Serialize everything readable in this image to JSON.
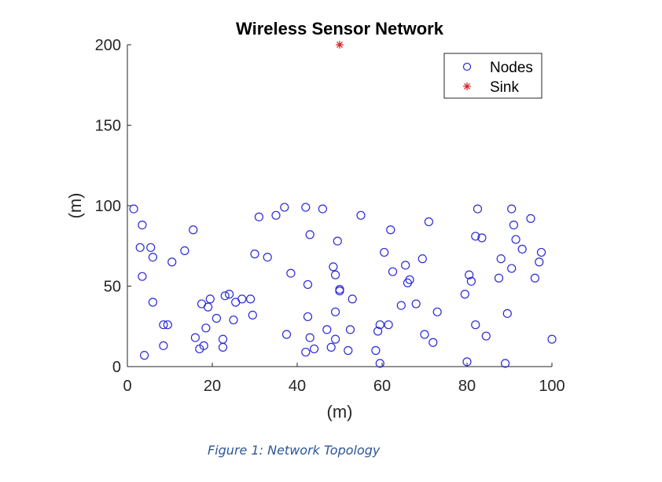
{
  "chart_data": {
    "type": "scatter",
    "title": "Wireless Sensor Network",
    "xlabel": "(m)",
    "ylabel": "(m)",
    "xlim": [
      0,
      100
    ],
    "ylim": [
      0,
      200
    ],
    "xticks": [
      "0",
      "20",
      "40",
      "60",
      "80",
      "100"
    ],
    "yticks": [
      "0",
      "50",
      "100",
      "150",
      "200"
    ],
    "grid": false,
    "legend_position": "top-right",
    "series": [
      {
        "name": "Nodes",
        "marker": "circle",
        "color": "#2a2ad8",
        "points": [
          [
            1.5,
            98
          ],
          [
            3.5,
            88
          ],
          [
            3,
            74
          ],
          [
            5.5,
            74
          ],
          [
            6,
            68
          ],
          [
            3.5,
            56
          ],
          [
            6,
            40
          ],
          [
            4,
            7
          ],
          [
            8.5,
            26
          ],
          [
            9.5,
            26
          ],
          [
            8.5,
            13
          ],
          [
            10.5,
            65
          ],
          [
            13.5,
            72
          ],
          [
            15.5,
            85
          ],
          [
            16,
            18
          ],
          [
            17.5,
            39
          ],
          [
            17,
            11
          ],
          [
            18,
            13
          ],
          [
            18.5,
            24
          ],
          [
            19,
            37
          ],
          [
            19.5,
            42
          ],
          [
            21,
            30
          ],
          [
            22.5,
            17
          ],
          [
            22.5,
            12
          ],
          [
            23,
            44
          ],
          [
            24,
            45
          ],
          [
            25,
            29
          ],
          [
            25.5,
            40
          ],
          [
            27,
            42
          ],
          [
            29,
            42
          ],
          [
            29.5,
            32
          ],
          [
            30,
            70
          ],
          [
            31,
            93
          ],
          [
            33,
            68
          ],
          [
            35,
            94
          ],
          [
            37,
            99
          ],
          [
            37.5,
            20
          ],
          [
            38.5,
            58
          ],
          [
            42,
            99
          ],
          [
            42.5,
            51
          ],
          [
            42.5,
            31
          ],
          [
            42,
            9
          ],
          [
            43,
            18
          ],
          [
            43,
            82
          ],
          [
            44,
            11
          ],
          [
            46,
            98
          ],
          [
            47,
            23
          ],
          [
            48,
            12
          ],
          [
            48.5,
            62
          ],
          [
            49,
            57
          ],
          [
            49,
            34
          ],
          [
            49,
            17
          ],
          [
            49.5,
            78
          ],
          [
            50,
            47
          ],
          [
            50,
            48
          ],
          [
            52,
            10
          ],
          [
            52.5,
            23
          ],
          [
            53,
            42
          ],
          [
            55,
            94
          ],
          [
            58.5,
            10
          ],
          [
            59,
            22
          ],
          [
            59.5,
            26
          ],
          [
            59.5,
            2
          ],
          [
            60.5,
            71
          ],
          [
            61.5,
            26
          ],
          [
            62,
            85
          ],
          [
            62.5,
            59
          ],
          [
            64.5,
            38
          ],
          [
            65.5,
            63
          ],
          [
            66,
            52
          ],
          [
            66.5,
            54
          ],
          [
            68,
            39
          ],
          [
            69.5,
            67
          ],
          [
            70,
            20
          ],
          [
            71,
            90
          ],
          [
            72,
            15
          ],
          [
            73,
            34
          ],
          [
            79.5,
            45
          ],
          [
            80,
            3
          ],
          [
            80.5,
            57
          ],
          [
            81,
            53
          ],
          [
            82,
            81
          ],
          [
            82,
            26
          ],
          [
            82.5,
            98
          ],
          [
            83.5,
            80
          ],
          [
            84.5,
            19
          ],
          [
            87.5,
            55
          ],
          [
            88,
            67
          ],
          [
            89,
            2
          ],
          [
            89.5,
            33
          ],
          [
            90.5,
            61
          ],
          [
            90.5,
            98
          ],
          [
            91,
            88
          ],
          [
            91.5,
            79
          ],
          [
            93,
            73
          ],
          [
            95,
            92
          ],
          [
            96,
            55
          ],
          [
            97,
            65
          ],
          [
            97.5,
            71
          ],
          [
            100,
            17
          ]
        ]
      },
      {
        "name": "Sink",
        "marker": "asterisk",
        "color": "#d42020",
        "points": [
          [
            50,
            200
          ]
        ]
      }
    ]
  },
  "caption": "Figure 1: Network Topology"
}
